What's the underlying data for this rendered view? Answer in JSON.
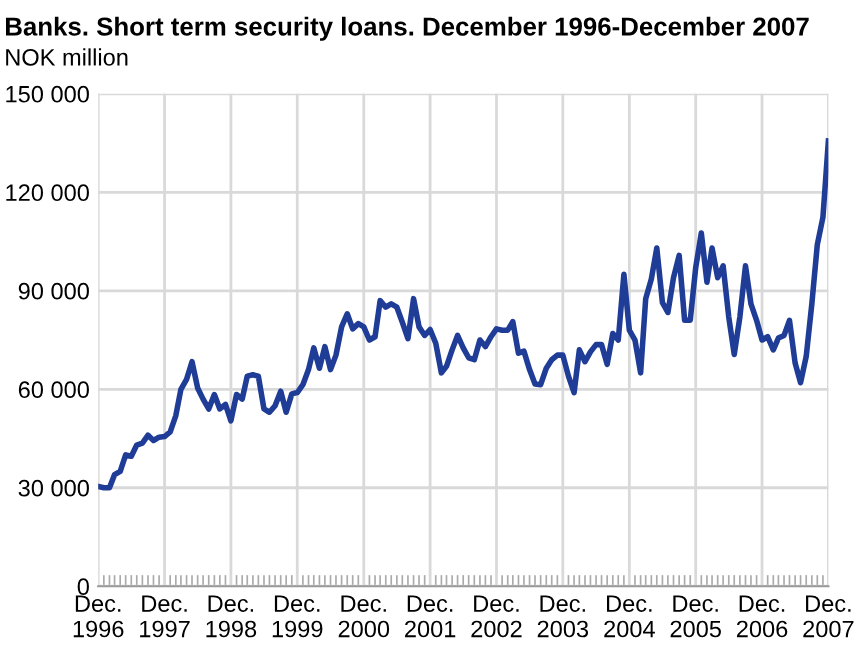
{
  "chart_data": {
    "type": "line",
    "title": "Banks. Short term security loans. December 1996-December 2007",
    "ylabel": "NOK million",
    "x": [
      "1996-12",
      "1997-01",
      "1997-02",
      "1997-03",
      "1997-04",
      "1997-05",
      "1997-06",
      "1997-07",
      "1997-08",
      "1997-09",
      "1997-10",
      "1997-11",
      "1997-12",
      "1998-01",
      "1998-02",
      "1998-03",
      "1998-04",
      "1998-05",
      "1998-06",
      "1998-07",
      "1998-08",
      "1998-09",
      "1998-10",
      "1998-11",
      "1998-12",
      "1999-01",
      "1999-02",
      "1999-03",
      "1999-04",
      "1999-05",
      "1999-06",
      "1999-07",
      "1999-08",
      "1999-09",
      "1999-10",
      "1999-11",
      "1999-12",
      "2000-01",
      "2000-02",
      "2000-03",
      "2000-04",
      "2000-05",
      "2000-06",
      "2000-07",
      "2000-08",
      "2000-09",
      "2000-10",
      "2000-11",
      "2000-12",
      "2001-01",
      "2001-02",
      "2001-03",
      "2001-04",
      "2001-05",
      "2001-06",
      "2001-07",
      "2001-08",
      "2001-09",
      "2001-10",
      "2001-11",
      "2001-12",
      "2002-01",
      "2002-02",
      "2002-03",
      "2002-04",
      "2002-05",
      "2002-06",
      "2002-07",
      "2002-08",
      "2002-09",
      "2002-10",
      "2002-11",
      "2002-12",
      "2003-01",
      "2003-02",
      "2003-03",
      "2003-04",
      "2003-05",
      "2003-06",
      "2003-07",
      "2003-08",
      "2003-09",
      "2003-10",
      "2003-11",
      "2003-12",
      "2004-01",
      "2004-02",
      "2004-03",
      "2004-04",
      "2004-05",
      "2004-06",
      "2004-07",
      "2004-08",
      "2004-09",
      "2004-10",
      "2004-11",
      "2004-12",
      "2005-01",
      "2005-02",
      "2005-03",
      "2005-04",
      "2005-05",
      "2005-06",
      "2005-07",
      "2005-08",
      "2005-09",
      "2005-10",
      "2005-11",
      "2005-12",
      "2006-01",
      "2006-02",
      "2006-03",
      "2006-04",
      "2006-05",
      "2006-06",
      "2006-07",
      "2006-08",
      "2006-09",
      "2006-10",
      "2006-11",
      "2006-12",
      "2007-01",
      "2007-02",
      "2007-03",
      "2007-04",
      "2007-05",
      "2007-06",
      "2007-07",
      "2007-08",
      "2007-09",
      "2007-10",
      "2007-11",
      "2007-12"
    ],
    "series": [
      {
        "color": "#1f3c96",
        "values": [
          30400,
          30000,
          30000,
          34000,
          35000,
          40000,
          39600,
          43000,
          43600,
          46000,
          44400,
          45400,
          45600,
          47000,
          52000,
          60000,
          63000,
          68400,
          60400,
          57000,
          54000,
          58400,
          54000,
          55400,
          50400,
          58400,
          57000,
          64000,
          64400,
          64000,
          54000,
          53000,
          55000,
          59400,
          53000,
          58600,
          59000,
          61400,
          66000,
          72600,
          66400,
          73000,
          66000,
          70400,
          79000,
          83000,
          78400,
          80000,
          79000,
          75000,
          76000,
          87000,
          85000,
          86000,
          85000,
          80400,
          75400,
          87600,
          79000,
          76400,
          78200,
          74000,
          65000,
          67000,
          72000,
          76400,
          72600,
          69600,
          69000,
          75000,
          73000,
          76000,
          78400,
          78000,
          78000,
          80600,
          71000,
          71600,
          66000,
          61600,
          61400,
          66400,
          69000,
          70400,
          70400,
          64000,
          59000,
          72000,
          68400,
          71400,
          73600,
          73600,
          67600,
          77000,
          75000,
          95000,
          78000,
          75000,
          65000,
          87600,
          93600,
          103000,
          86400,
          83400,
          94000,
          100800,
          81000,
          81000,
          97000,
          107600,
          92600,
          103000,
          94000,
          97600,
          82000,
          70600,
          82000,
          97600,
          86000,
          81000,
          75000,
          76000,
          72000,
          75600,
          76400,
          81000,
          68000,
          62000,
          70000,
          86000,
          104000,
          112400,
          135600
        ]
      }
    ],
    "xlim": [
      "1996-12",
      "2007-12"
    ],
    "xticks": [
      {
        "value": "1996-12",
        "label": "Dec.\n1996"
      },
      {
        "value": "1997-12",
        "label": "Dec.\n1997"
      },
      {
        "value": "1998-12",
        "label": "Dec.\n1998"
      },
      {
        "value": "1999-12",
        "label": "Dec.\n1999"
      },
      {
        "value": "2000-12",
        "label": "Dec.\n2000"
      },
      {
        "value": "2001-12",
        "label": "Dec.\n2001"
      },
      {
        "value": "2002-12",
        "label": "Dec.\n2002"
      },
      {
        "value": "2003-12",
        "label": "Dec.\n2003"
      },
      {
        "value": "2004-12",
        "label": "Dec.\n2004"
      },
      {
        "value": "2005-12",
        "label": "Dec.\n2005"
      },
      {
        "value": "2006-12",
        "label": "Dec.\n2006"
      },
      {
        "value": "2007-12",
        "label": "Dec.\n2007"
      }
    ],
    "ylim": [
      0,
      150000
    ],
    "yticks": [
      0,
      {
        "value": 30000,
        "label": "30 000"
      },
      {
        "value": 60000,
        "label": "60 000"
      },
      {
        "value": 90000,
        "label": "90 000"
      },
      {
        "value": 120000,
        "label": "120 000"
      },
      {
        "value": 150000,
        "label": "150 000"
      }
    ],
    "grid": true,
    "line_style": "solid",
    "marker": "none"
  }
}
